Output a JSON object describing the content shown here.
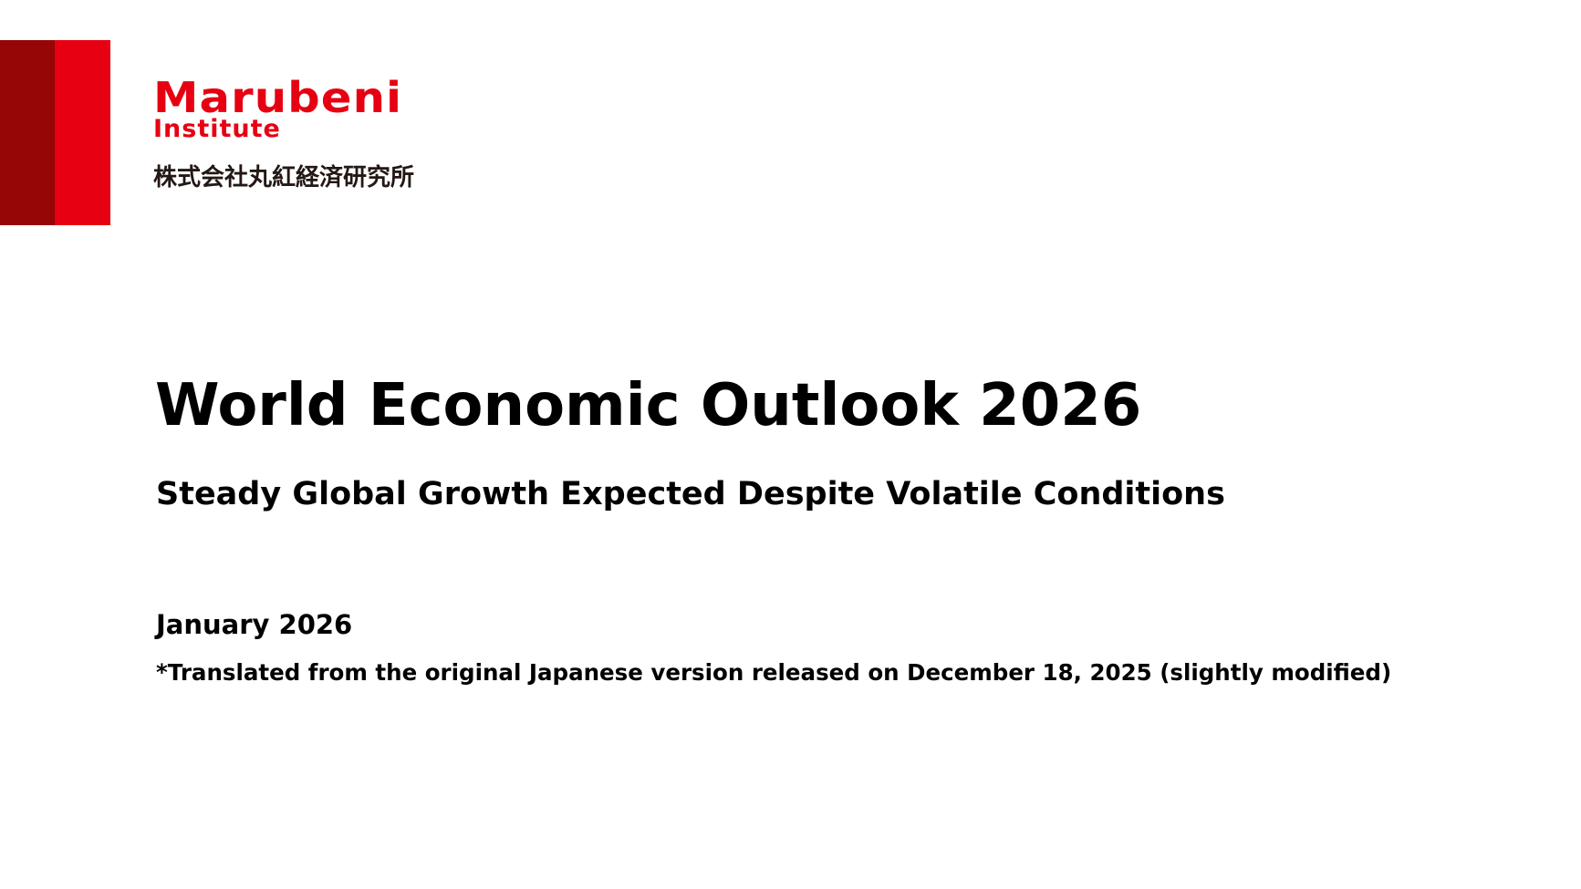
{
  "brand": {
    "logo_main": "Marubeni",
    "logo_sub": "Institute",
    "logo_jp": "株式会社丸紅経済研究所",
    "colors": {
      "primary_red": "#e60012",
      "dark_red": "#960606",
      "logo_jp_text": "#231815"
    }
  },
  "cover": {
    "title": "World Economic Outlook 2026",
    "subtitle": "Steady Global Growth Expected Despite Volatile Conditions",
    "date": "January 2026",
    "note": "*Translated from the original Japanese version released on December 18, 2025 (slightly modified)"
  }
}
